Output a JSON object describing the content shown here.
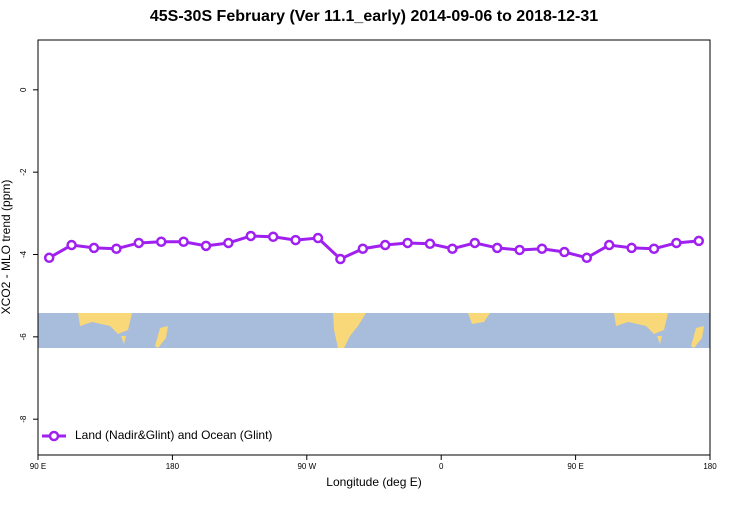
{
  "chart_data": {
    "type": "line",
    "title": "45S-30S February (Ver 11.1_early)   2014-09-06 to 2018-12-31",
    "x_label": "Longitude (deg E)",
    "y_label": "XCO2 - MLO trend (ppm)",
    "x": [
      97.5,
      112.5,
      127.5,
      142.5,
      157.5,
      172.5,
      187.5,
      202.5,
      217.5,
      232.5,
      247.5,
      262.5,
      277.5,
      292.5,
      307.5,
      322.5,
      337.5,
      352.5,
      367.5,
      382.5,
      397.5,
      412.5,
      427.5,
      442.5,
      457.5,
      472.5,
      487.5,
      502.5,
      517.5,
      532.5
    ],
    "series": [
      {
        "name": "Land (Nadir&Glint) and Ocean (Glint)",
        "color": "#a020f0",
        "values": [
          -4.08,
          -3.77,
          -3.84,
          -3.86,
          -3.72,
          -3.69,
          -3.69,
          -3.79,
          -3.72,
          -3.55,
          -3.57,
          -3.65,
          -3.6,
          -4.11,
          -3.86,
          -3.77,
          -3.72,
          -3.74,
          -3.86,
          -3.72,
          -3.84,
          -3.89,
          -3.86,
          -3.94,
          -4.08,
          -3.77,
          -3.84,
          -3.86,
          -3.72,
          -3.67
        ]
      }
    ],
    "xlim": [
      90,
      540
    ],
    "xticks": [
      {
        "value": 90,
        "label": "90 E"
      },
      180,
      {
        "value": 270,
        "label": "90 W"
      },
      {
        "value": 360,
        "label": "0"
      },
      {
        "value": 450,
        "label": "90 E"
      },
      {
        "value": 540,
        "label": "180"
      }
    ],
    "ylim": [
      -8.87,
      1.21
    ],
    "yticks": [
      0,
      -2,
      -4,
      -6,
      -8
    ],
    "legend_position": "bottom-left"
  }
}
